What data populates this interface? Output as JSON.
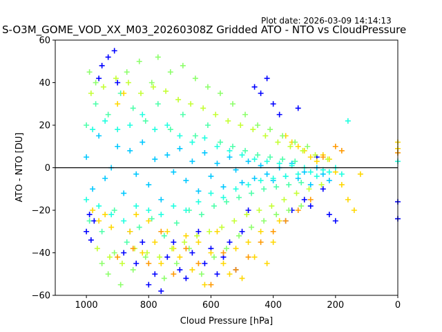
{
  "header": {
    "plot_date": "Plot date: 2026-03-09 14:14:13",
    "title": "S-O3M_GOME_VOD_XX_M03_20260308Z Gridded ATO - NTO vs CloudPressure"
  },
  "chart_data": {
    "type": "scatter",
    "title": "S-O3M_GOME_VOD_XX_M03_20260308Z Gridded ATO - NTO vs CloudPressure",
    "xlabel": "Cloud Pressure [hPa]",
    "ylabel": "ATO - NTO [DU]",
    "xlim": [
      1100,
      0
    ],
    "ylim": [
      -60,
      60
    ],
    "x_ticks": [
      1000,
      800,
      600,
      400,
      200,
      0
    ],
    "y_ticks": [
      -60,
      -40,
      -20,
      0,
      20,
      40,
      60
    ],
    "x_tick_labels": [
      "1000",
      "800",
      "600",
      "400",
      "200",
      "0"
    ],
    "y_tick_labels": [
      "−60",
      "−40",
      "−20",
      "0",
      "20",
      "40",
      "60"
    ],
    "reference_line": {
      "y": 0,
      "color": "#000000"
    },
    "marker": "+",
    "grid": false,
    "colors": [
      "#0000ff",
      "#00a4ff",
      "#1fffe0",
      "#4dffaa",
      "#8cff6a",
      "#c4ff33",
      "#ffd700",
      "#ff9900"
    ],
    "series": [
      {
        "color": "#00c8ff",
        "points": [
          [
            1000,
            5
          ],
          [
            980,
            -10
          ],
          [
            960,
            15
          ],
          [
            940,
            -5
          ],
          [
            920,
            0
          ],
          [
            900,
            10
          ],
          [
            880,
            -12
          ],
          [
            860,
            8
          ],
          [
            840,
            -3
          ],
          [
            820,
            12
          ],
          [
            800,
            -8
          ],
          [
            780,
            4
          ],
          [
            760,
            -15
          ],
          [
            740,
            6
          ],
          [
            720,
            -2
          ],
          [
            700,
            9
          ],
          [
            680,
            -6
          ],
          [
            660,
            3
          ],
          [
            640,
            -11
          ],
          [
            620,
            7
          ],
          [
            600,
            -4
          ],
          [
            580,
            2
          ],
          [
            560,
            -9
          ],
          [
            540,
            5
          ],
          [
            520,
            -1
          ],
          [
            500,
            -7
          ],
          [
            480,
            3
          ],
          [
            460,
            -5
          ],
          [
            440,
            1
          ],
          [
            420,
            -3
          ],
          [
            400,
            -6
          ],
          [
            380,
            0
          ],
          [
            360,
            -4
          ],
          [
            340,
            2
          ],
          [
            320,
            -5
          ],
          [
            300,
            -2
          ],
          [
            280,
            -8
          ],
          [
            260,
            0
          ],
          [
            240,
            -3
          ],
          [
            220,
            -6
          ]
        ]
      },
      {
        "color": "#4dffaa",
        "points": [
          [
            1000,
            20
          ],
          [
            990,
            -25
          ],
          [
            970,
            30
          ],
          [
            950,
            -30
          ],
          [
            930,
            25
          ],
          [
            910,
            -20
          ],
          [
            890,
            35
          ],
          [
            870,
            -35
          ],
          [
            850,
            28
          ],
          [
            830,
            -28
          ],
          [
            810,
            22
          ],
          [
            790,
            -24
          ],
          [
            770,
            30
          ],
          [
            750,
            -32
          ],
          [
            730,
            18
          ],
          [
            710,
            -26
          ],
          [
            690,
            25
          ],
          [
            670,
            -20
          ],
          [
            650,
            15
          ],
          [
            630,
            -22
          ],
          [
            610,
            20
          ],
          [
            590,
            -18
          ],
          [
            570,
            12
          ],
          [
            550,
            -16
          ],
          [
            530,
            10
          ],
          [
            510,
            -14
          ],
          [
            490,
            8
          ],
          [
            470,
            -12
          ],
          [
            450,
            6
          ],
          [
            430,
            -10
          ],
          [
            410,
            5
          ],
          [
            390,
            -9
          ],
          [
            370,
            4
          ],
          [
            350,
            -8
          ],
          [
            330,
            3
          ],
          [
            310,
            -7
          ]
        ]
      },
      {
        "color": "#0000ff",
        "points": [
          [
            1000,
            -30
          ],
          [
            990,
            -22
          ],
          [
            985,
            -34
          ],
          [
            975,
            -25
          ],
          [
            960,
            42
          ],
          [
            950,
            48
          ],
          [
            930,
            52
          ],
          [
            910,
            55
          ],
          [
            900,
            40
          ],
          [
            880,
            -40
          ],
          [
            860,
            -30
          ],
          [
            840,
            -45
          ],
          [
            820,
            -35
          ],
          [
            800,
            -55
          ],
          [
            780,
            -50
          ],
          [
            760,
            -58
          ],
          [
            740,
            -42
          ],
          [
            720,
            -35
          ],
          [
            700,
            -48
          ],
          [
            680,
            -52
          ],
          [
            660,
            -40
          ],
          [
            640,
            -30
          ],
          [
            620,
            -45
          ],
          [
            600,
            -38
          ],
          [
            580,
            -50
          ],
          [
            560,
            -42
          ],
          [
            540,
            -35
          ],
          [
            520,
            -48
          ],
          [
            500,
            -30
          ],
          [
            480,
            -20
          ],
          [
            460,
            38
          ],
          [
            440,
            35
          ],
          [
            420,
            42
          ],
          [
            400,
            30
          ],
          [
            380,
            25
          ],
          [
            360,
            -25
          ],
          [
            340,
            -20
          ],
          [
            320,
            28
          ],
          [
            300,
            -15
          ],
          [
            280,
            -18
          ],
          [
            260,
            5
          ],
          [
            240,
            -10
          ],
          [
            220,
            -22
          ],
          [
            200,
            -25
          ],
          [
            0,
            -16
          ],
          [
            0,
            -24
          ]
        ]
      },
      {
        "color": "#ffd700",
        "points": [
          [
            980,
            -20
          ],
          [
            960,
            -25
          ],
          [
            940,
            -22
          ],
          [
            920,
            -28
          ],
          [
            900,
            30
          ],
          [
            880,
            35
          ],
          [
            860,
            -30
          ],
          [
            840,
            -22
          ],
          [
            820,
            -40
          ],
          [
            800,
            -25
          ],
          [
            780,
            -35
          ],
          [
            760,
            -45
          ],
          [
            740,
            -30
          ],
          [
            720,
            -38
          ],
          [
            700,
            -42
          ],
          [
            680,
            -32
          ],
          [
            660,
            -48
          ],
          [
            640,
            -35
          ],
          [
            620,
            -55
          ],
          [
            600,
            -40
          ],
          [
            580,
            -30
          ],
          [
            560,
            -45
          ],
          [
            540,
            -50
          ],
          [
            520,
            -38
          ],
          [
            500,
            -52
          ],
          [
            480,
            -35
          ],
          [
            460,
            -42
          ],
          [
            440,
            -30
          ],
          [
            420,
            -45
          ],
          [
            400,
            -35
          ],
          [
            380,
            -25
          ],
          [
            360,
            15
          ],
          [
            340,
            12
          ],
          [
            320,
            10
          ],
          [
            300,
            8
          ],
          [
            280,
            5
          ],
          [
            260,
            3
          ],
          [
            240,
            6
          ],
          [
            220,
            4
          ],
          [
            200,
            -2
          ],
          [
            180,
            -8
          ],
          [
            160,
            -15
          ],
          [
            140,
            -20
          ],
          [
            120,
            -3
          ],
          [
            0,
            12
          ],
          [
            0,
            9
          ]
        ]
      },
      {
        "color": "#8cff6a",
        "points": [
          [
            990,
            45
          ],
          [
            970,
            40
          ],
          [
            950,
            -45
          ],
          [
            930,
            -50
          ],
          [
            910,
            -40
          ],
          [
            890,
            -55
          ],
          [
            870,
            45
          ],
          [
            850,
            -48
          ],
          [
            830,
            50
          ],
          [
            810,
            -42
          ],
          [
            790,
            40
          ],
          [
            770,
            52
          ],
          [
            750,
            -52
          ],
          [
            730,
            45
          ],
          [
            710,
            -45
          ],
          [
            690,
            48
          ],
          [
            670,
            -38
          ],
          [
            650,
            42
          ],
          [
            630,
            -50
          ],
          [
            610,
            38
          ],
          [
            590,
            -42
          ],
          [
            570,
            35
          ],
          [
            550,
            -38
          ],
          [
            530,
            30
          ],
          [
            510,
            -32
          ],
          [
            490,
            25
          ],
          [
            470,
            -28
          ],
          [
            450,
            20
          ],
          [
            430,
            -25
          ],
          [
            410,
            18
          ],
          [
            390,
            -22
          ],
          [
            370,
            15
          ],
          [
            350,
            -20
          ],
          [
            330,
            12
          ],
          [
            310,
            -18
          ],
          [
            290,
            10
          ]
        ]
      },
      {
        "color": "#1fffe0",
        "points": [
          [
            1000,
            -15
          ],
          [
            980,
            18
          ],
          [
            960,
            -18
          ],
          [
            940,
            22
          ],
          [
            920,
            -22
          ],
          [
            900,
            18
          ],
          [
            880,
            -25
          ],
          [
            860,
            20
          ],
          [
            840,
            -18
          ],
          [
            820,
            25
          ],
          [
            800,
            -20
          ],
          [
            780,
            18
          ],
          [
            760,
            -22
          ],
          [
            740,
            20
          ],
          [
            720,
            -18
          ],
          [
            700,
            15
          ],
          [
            680,
            -20
          ],
          [
            660,
            12
          ],
          [
            640,
            -16
          ],
          [
            620,
            14
          ],
          [
            600,
            -12
          ],
          [
            580,
            10
          ],
          [
            560,
            -14
          ],
          [
            540,
            8
          ],
          [
            520,
            -10
          ],
          [
            500,
            6
          ],
          [
            480,
            -8
          ],
          [
            460,
            4
          ],
          [
            440,
            -6
          ],
          [
            420,
            3
          ],
          [
            400,
            -5
          ],
          [
            380,
            2
          ],
          [
            360,
            -4
          ],
          [
            340,
            1
          ],
          [
            320,
            -3
          ],
          [
            300,
            0
          ],
          [
            280,
            -2
          ],
          [
            260,
            -4
          ],
          [
            240,
            -1
          ],
          [
            220,
            -2
          ],
          [
            200,
            0
          ],
          [
            180,
            -3
          ],
          [
            160,
            22
          ],
          [
            0,
            3
          ]
        ]
      },
      {
        "color": "#c4ff33",
        "points": [
          [
            985,
            35
          ],
          [
            965,
            -38
          ],
          [
            945,
            38
          ],
          [
            925,
            -42
          ],
          [
            905,
            42
          ],
          [
            885,
            -45
          ],
          [
            865,
            40
          ],
          [
            845,
            -38
          ],
          [
            825,
            35
          ],
          [
            805,
            -40
          ],
          [
            785,
            38
          ],
          [
            765,
            -42
          ],
          [
            745,
            36
          ],
          [
            725,
            -38
          ],
          [
            705,
            32
          ],
          [
            685,
            -35
          ],
          [
            665,
            30
          ],
          [
            645,
            -32
          ],
          [
            625,
            28
          ],
          [
            605,
            -30
          ],
          [
            585,
            25
          ],
          [
            565,
            -28
          ],
          [
            545,
            22
          ],
          [
            525,
            -25
          ],
          [
            505,
            20
          ],
          [
            485,
            -22
          ],
          [
            465,
            18
          ],
          [
            445,
            -20
          ],
          [
            425,
            15
          ],
          [
            405,
            -18
          ],
          [
            385,
            12
          ],
          [
            365,
            -15
          ],
          [
            345,
            10
          ],
          [
            325,
            -12
          ],
          [
            305,
            8
          ],
          [
            285,
            -10
          ],
          [
            265,
            6
          ],
          [
            245,
            -8
          ],
          [
            225,
            4
          ]
        ]
      },
      {
        "color": "#ff9900",
        "points": [
          [
            900,
            -42
          ],
          [
            850,
            -38
          ],
          [
            800,
            -45
          ],
          [
            760,
            -30
          ],
          [
            720,
            -50
          ],
          [
            680,
            -38
          ],
          [
            640,
            -45
          ],
          [
            600,
            -55
          ],
          [
            560,
            -40
          ],
          [
            520,
            -48
          ],
          [
            480,
            -42
          ],
          [
            440,
            -35
          ],
          [
            400,
            -30
          ],
          [
            360,
            -25
          ],
          [
            320,
            -20
          ],
          [
            280,
            -15
          ],
          [
            240,
            5
          ],
          [
            200,
            10
          ],
          [
            180,
            8
          ],
          [
            0,
            7
          ]
        ]
      }
    ]
  }
}
